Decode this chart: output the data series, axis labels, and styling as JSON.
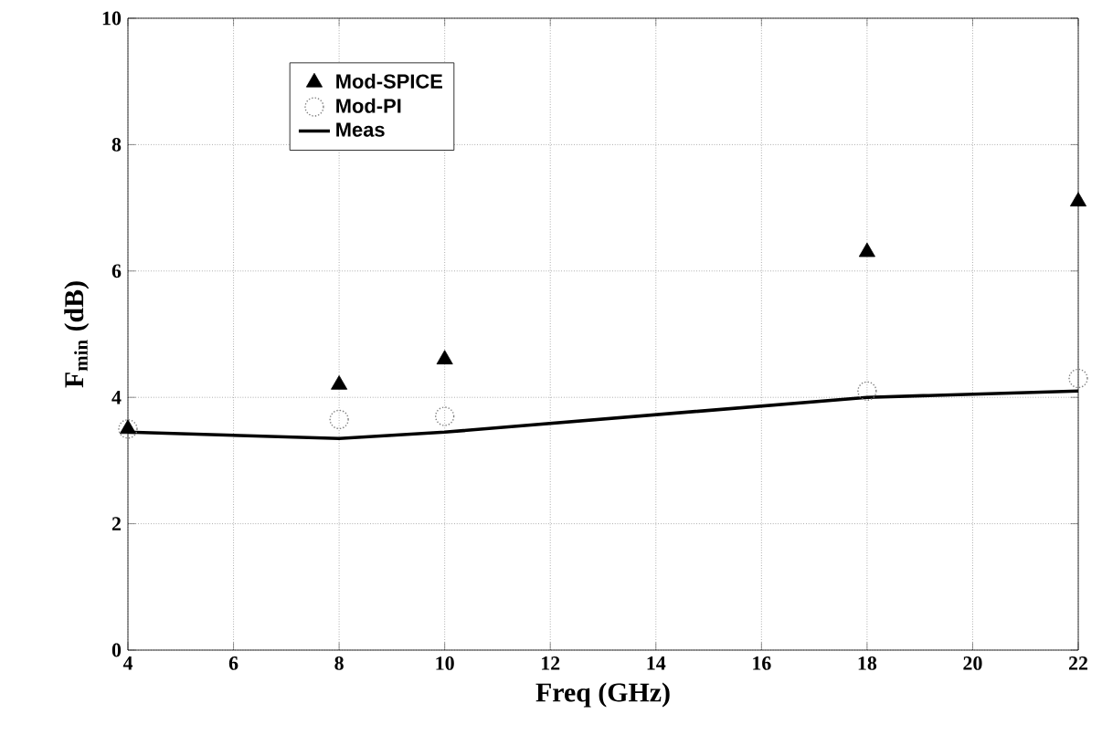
{
  "chart_data": {
    "type": "scatter",
    "xlabel": "Freq (GHz)",
    "ylabel": "F$_{min}$ (dB)",
    "x": [
      4,
      8,
      10,
      18,
      22
    ],
    "series": [
      {
        "name": "Mod-SPICE",
        "marker": "triangle",
        "color": "#000000",
        "values": [
          3.5,
          4.2,
          4.6,
          6.3,
          7.1
        ]
      },
      {
        "name": "Mod-PI",
        "marker": "circle",
        "color": "#808080",
        "values": [
          3.5,
          3.65,
          3.7,
          4.1,
          4.3
        ]
      },
      {
        "name": "Meas",
        "type": "line",
        "marker": "none",
        "line_style": "solid",
        "color": "#000000",
        "values": [
          3.45,
          3.35,
          3.45,
          4.0,
          4.1
        ]
      }
    ],
    "xlim": [
      4,
      22
    ],
    "ylim": [
      0,
      10
    ],
    "xticks": [
      4,
      6,
      8,
      10,
      12,
      14,
      16,
      18,
      20,
      22
    ],
    "yticks": [
      0,
      2,
      4,
      6,
      8,
      10
    ],
    "grid": true,
    "legend": "top left"
  }
}
